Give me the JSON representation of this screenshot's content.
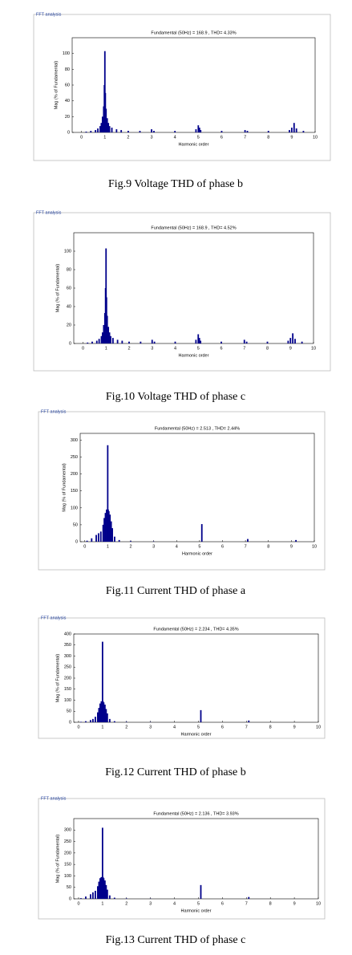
{
  "chart_data": [
    {
      "type": "bar",
      "panel_title": "FFT analysis",
      "title": "Fundamental (50Hz) = 168.9 , THD= 4.33%",
      "xlabel": "Harmonic order",
      "ylabel": "Mag (% of Fundamental)",
      "caption": "Fig.9 Voltage THD of phase b",
      "color": "#00008b",
      "x": [
        0.2,
        0.4,
        0.6,
        0.7,
        0.8,
        0.85,
        0.9,
        0.95,
        0.98,
        1.0,
        1.02,
        1.05,
        1.1,
        1.15,
        1.2,
        1.3,
        1.5,
        1.7,
        2.0,
        2.5,
        3.0,
        3.1,
        4.0,
        4.9,
        5.0,
        5.05,
        5.1,
        6.0,
        7.0,
        7.1,
        8.0,
        8.9,
        9.0,
        9.1,
        9.2,
        9.5
      ],
      "values": [
        1,
        2,
        3,
        5,
        8,
        12,
        20,
        33,
        60,
        103,
        50,
        30,
        18,
        12,
        8,
        6,
        4,
        3,
        2,
        2,
        4,
        2,
        2,
        4,
        9,
        6,
        3,
        2,
        3,
        2,
        2,
        3,
        6,
        12,
        5,
        2
      ],
      "xlim": [
        -0.4,
        10
      ],
      "xticks": [
        0,
        1,
        2,
        3,
        4,
        5,
        6,
        7,
        8,
        9,
        10
      ],
      "ylim": [
        0,
        120
      ],
      "yticks": [
        0,
        20,
        40,
        60,
        80,
        100
      ]
    },
    {
      "type": "bar",
      "panel_title": "FFT analysis",
      "title": "Fundamental (50Hz) = 168.9 , THD= 4.52%",
      "xlabel": "Harmonic order",
      "ylabel": "Mag (% of Fundamental)",
      "caption": "Fig.10 Voltage THD of phase c",
      "color": "#00008b",
      "x": [
        0.2,
        0.4,
        0.6,
        0.7,
        0.8,
        0.85,
        0.9,
        0.95,
        0.98,
        1.0,
        1.02,
        1.05,
        1.1,
        1.15,
        1.2,
        1.3,
        1.5,
        1.7,
        2.0,
        2.5,
        3.0,
        3.1,
        4.0,
        4.9,
        5.0,
        5.05,
        5.1,
        6.0,
        7.0,
        7.1,
        8.0,
        8.9,
        9.0,
        9.1,
        9.2,
        9.5
      ],
      "values": [
        1,
        2,
        3,
        5,
        8,
        12,
        20,
        33,
        60,
        103,
        50,
        30,
        18,
        12,
        8,
        6,
        4,
        3,
        2,
        2,
        4,
        2,
        2,
        4,
        10,
        6,
        3,
        2,
        4,
        2,
        2,
        3,
        6,
        11,
        5,
        2
      ],
      "xlim": [
        -0.4,
        10
      ],
      "xticks": [
        0,
        1,
        2,
        3,
        4,
        5,
        6,
        7,
        8,
        9,
        10
      ],
      "ylim": [
        0,
        120
      ],
      "yticks": [
        0,
        20,
        40,
        60,
        80,
        100
      ]
    },
    {
      "type": "bar",
      "panel_title": "FFT analysis",
      "title": "Fundamental (50Hz) = 2.513 , THD= 2.44%",
      "xlabel": "Harmonic order",
      "ylabel": "Mag (% of Fundamental)",
      "caption": "Fig.11 Current THD of phase a",
      "color": "#00008b",
      "x": [
        0.1,
        0.3,
        0.5,
        0.6,
        0.7,
        0.8,
        0.85,
        0.9,
        0.95,
        1.0,
        1.02,
        1.05,
        1.1,
        1.15,
        1.2,
        1.3,
        1.5,
        2.0,
        3.0,
        5.1,
        7.1,
        9.2
      ],
      "values": [
        3,
        10,
        20,
        25,
        30,
        50,
        70,
        85,
        95,
        285,
        95,
        90,
        80,
        60,
        40,
        15,
        5,
        2,
        1,
        52,
        8,
        5
      ],
      "xlim": [
        -0.2,
        10
      ],
      "xticks": [
        0,
        1,
        2,
        3,
        4,
        5,
        6,
        7,
        8,
        9,
        10
      ],
      "ylim": [
        0,
        320
      ],
      "yticks": [
        0,
        50,
        100,
        150,
        200,
        250,
        300
      ]
    },
    {
      "type": "bar",
      "panel_title": "FFT analysis",
      "title": "Fundamental (50Hz) = 2.234 , THD= 4.35%",
      "xlabel": "Harmonic order",
      "ylabel": "Mag (% of Fundamental)",
      "caption": "Fig.12 Current THD of phase b",
      "color": "#00008b",
      "x": [
        0.1,
        0.3,
        0.5,
        0.6,
        0.7,
        0.8,
        0.85,
        0.9,
        0.95,
        1.0,
        1.02,
        1.05,
        1.1,
        1.15,
        1.2,
        1.3,
        1.5,
        2.0,
        3.0,
        5.1,
        7.1
      ],
      "values": [
        2,
        5,
        10,
        15,
        25,
        45,
        65,
        85,
        95,
        365,
        95,
        90,
        80,
        60,
        40,
        15,
        5,
        2,
        1,
        55,
        8
      ],
      "xlim": [
        -0.2,
        10
      ],
      "xticks": [
        0,
        1,
        2,
        3,
        4,
        5,
        6,
        7,
        8,
        9,
        10
      ],
      "ylim": [
        0,
        400
      ],
      "yticks": [
        0,
        50,
        100,
        150,
        200,
        250,
        300,
        350,
        400
      ]
    },
    {
      "type": "bar",
      "panel_title": "FFT analysis",
      "title": "Fundamental (50Hz) = 2.136 , THD= 3.93%",
      "xlabel": "Harmonic order",
      "ylabel": "Mag (% of Fundamental)",
      "caption": "Fig.13 Current THD of phase c",
      "color": "#00008b",
      "x": [
        0.1,
        0.3,
        0.5,
        0.6,
        0.7,
        0.8,
        0.85,
        0.9,
        0.95,
        1.0,
        1.02,
        1.05,
        1.1,
        1.15,
        1.2,
        1.3,
        1.5,
        2.0,
        3.0,
        5.1,
        7.1
      ],
      "values": [
        3,
        10,
        20,
        28,
        35,
        55,
        75,
        90,
        95,
        310,
        95,
        90,
        80,
        60,
        40,
        15,
        5,
        2,
        1,
        60,
        8
      ],
      "xlim": [
        -0.2,
        10
      ],
      "xticks": [
        0,
        1,
        2,
        3,
        4,
        5,
        6,
        7,
        8,
        9,
        10
      ],
      "ylim": [
        0,
        350
      ],
      "yticks": [
        0,
        50,
        100,
        150,
        200,
        250,
        300
      ]
    }
  ]
}
